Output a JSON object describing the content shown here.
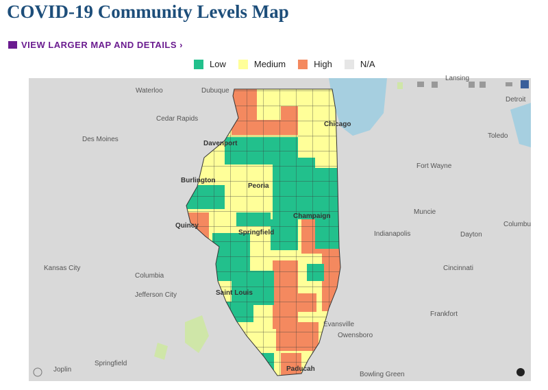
{
  "header": {
    "title": "COVID-19 Community Levels Map",
    "link": "VIEW LARGER MAP AND DETAILS ›"
  },
  "legend": [
    "Low",
    "Medium",
    "High",
    "N/A"
  ],
  "map": {
    "labels": [
      "Waterloo",
      "Dubuque",
      "Lansing",
      "Detroit",
      "Cedar Rapids",
      "Chicago",
      "Des Moines",
      "Davenport",
      "Toledo",
      "Fort Wayne",
      "Burlington",
      "Peoria",
      "Muncie",
      "Champaign",
      "Quincy",
      "Columbu",
      "Springfield",
      "Indianapolis",
      "Dayton",
      "Kansas City",
      "Cincinnati",
      "Columbia",
      "Jefferson City",
      "Saint Louis",
      "Frankfort",
      "Evansville",
      "Owensboro",
      "Joplin",
      "Springfield",
      "Paducah",
      "Bowling Green"
    ]
  }
}
